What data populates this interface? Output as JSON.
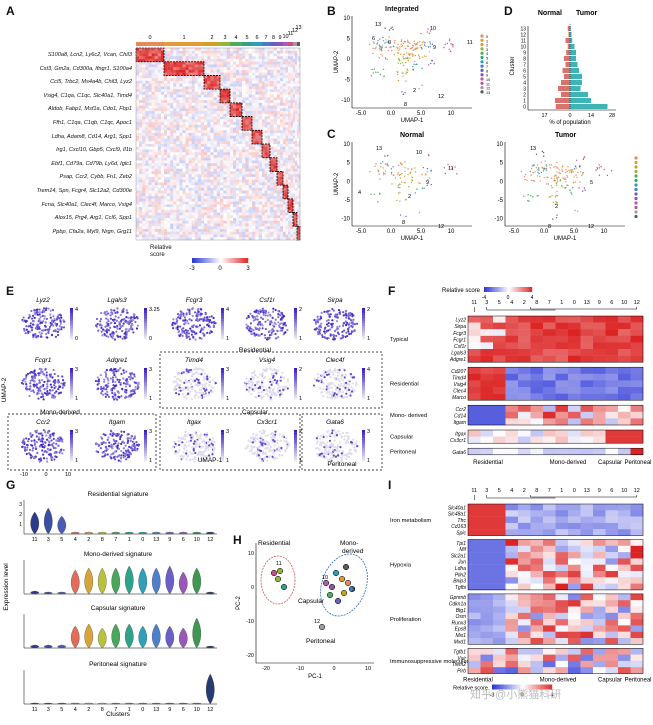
{
  "panels": {
    "A": "A",
    "B": "B",
    "C": "C",
    "D": "D",
    "E": "E",
    "F": "F",
    "G": "G",
    "H": "H",
    "I": "I"
  },
  "panelA": {
    "cluster_ticks": [
      "0",
      "1",
      "2",
      "3",
      "4",
      "5",
      "6",
      "7",
      "8",
      "9",
      "10",
      "11",
      "12",
      "13"
    ],
    "gene_rows": [
      "S100a8, Lcn2, Ly6c2, Vcan, Chil3",
      "Cst3, Gm2a, Cd300a, Ifngr1, S100a4",
      "Ccl5, Trbc2, Ms4a4b, Chil3, Lyz2",
      "Vsig4, C1qa, C1qc, Slc40a1, Timd4",
      "Aldob, Fabp1, Msf1a, Cdo1, Fbp1",
      "Ffh1, C1qa, C1qb, C1qc, Apoc1",
      "Ldha, Adam8, Cd14, Arg1, Spp1",
      "Irg1, Cxcl10, Gbp5, Cxcl9, Il1b",
      "Ebf1, Cd79a, Cd79b, Ly6d, Iglc1",
      "Psap, Ccr2, Cybb, Fn1, Zeb2",
      "Trem14, Spn, Fcgr4, Slc12a2, Cd300e",
      "Fcna, Slc40a1, Clec4f, Marco, Vsig4",
      "Alox15, Prg4, Arg1, Ccl6, Spp1",
      "Ppbp, Cfa2a, Myl9, Nrgn, Grg11"
    ],
    "legend_title": "Relative\nscore",
    "legend_ticks": [
      "-3",
      "0",
      "3"
    ],
    "cluster_colors": [
      "#e58a5b",
      "#e39a3a",
      "#c9a227",
      "#8fb83a",
      "#4dad5b",
      "#2ea28a",
      "#2e9fb5",
      "#3f7fc7",
      "#6a5fc2",
      "#8b55b3",
      "#b25ba8",
      "#c7508a",
      "#9e9e9e",
      "#5a5a5a"
    ]
  },
  "panelB": {
    "title": "Integrated",
    "xlabel": "UMAP-1",
    "ylabel": "UMAP-2",
    "xticks": [
      "-5.0",
      "0.0",
      "5.0",
      "10"
    ],
    "yticks": [
      "10",
      "5",
      "0",
      "-5",
      "-10"
    ],
    "cluster_labels": [
      "13",
      "6",
      "0",
      "10",
      "9",
      "11",
      "2",
      "8",
      "12"
    ]
  },
  "panelC": {
    "title_normal": "Normal",
    "title_tumor": "Tumor",
    "xlabel": "UMAP-1",
    "ylabel": "UMAP-2",
    "xticks": [
      "-5.0",
      "0.0",
      "5.0",
      "10"
    ],
    "yticks": [
      "10",
      "5",
      "0",
      "-5",
      "-10"
    ],
    "normal_labels": [
      "13",
      "10",
      "11",
      "4",
      "9",
      "2",
      "8",
      "12"
    ],
    "tumor_labels": [
      "13",
      "5",
      "2",
      "8",
      "12"
    ]
  },
  "chart_data": {
    "type": "bar",
    "title": "",
    "left_label": "Normal",
    "right_label": "Tumor",
    "categories": [
      "0",
      "1",
      "2",
      "3",
      "4",
      "5",
      "6",
      "7",
      "8",
      "9",
      "10",
      "11",
      "12",
      "13"
    ],
    "series": [
      {
        "name": "Normal",
        "values": [
          9.5,
          10,
          6,
          8,
          6,
          4,
          5,
          3,
          4,
          2.5,
          1.5,
          3,
          1,
          1.5
        ]
      },
      {
        "name": "Tumor",
        "values": [
          25,
          14,
          12,
          7,
          8,
          8,
          6,
          5,
          4,
          4,
          3,
          1.5,
          1,
          0.5
        ]
      }
    ],
    "xlabel": "% of population",
    "ylabel": "Cluster",
    "xticks": [
      "17",
      "0",
      "14",
      "28"
    ]
  },
  "panelE": {
    "genes": [
      "Lyz2",
      "Lgals3",
      "Fcgr3",
      "Csf1r",
      "Sirpa",
      "Fcgr1",
      "Adgre1",
      "Timd4",
      "Vsig4",
      "Clec4f",
      "Ccr2",
      "Itgam",
      "Itgax",
      "Cx3cr1",
      "Gata6"
    ],
    "scales": [
      [
        "4",
        "0"
      ],
      [
        "3.25",
        "0"
      ],
      [
        "4",
        "1"
      ],
      [
        "2",
        "1"
      ],
      [
        "2",
        "1"
      ],
      [
        "3",
        "1"
      ],
      [
        "3",
        "1"
      ],
      [
        "3",
        "1"
      ],
      [
        "2",
        "1"
      ],
      [
        "4",
        "1"
      ],
      [
        "3",
        "1"
      ],
      [
        "3",
        "1"
      ],
      [
        "3",
        "1"
      ],
      [
        "2",
        "1"
      ],
      [
        "3",
        "1"
      ]
    ],
    "group_residential": "Residential",
    "group_monoderived": "Mono-derived",
    "group_capsular": "Capsular",
    "group_peritoneal": "Peritoneal",
    "xlabel": "UMAP-1",
    "ylabel": "UMAP-2",
    "ticks": [
      "-10",
      "0",
      "10"
    ]
  },
  "panelF": {
    "legend_title": "Relative score",
    "legend_ticks": [
      "-4",
      "0",
      "4"
    ],
    "columns": [
      "11",
      "3",
      "5",
      "4",
      "2",
      "8",
      "7",
      "1",
      "0",
      "13",
      "9",
      "6",
      "10",
      "12"
    ],
    "groups": [
      {
        "name": "Typical",
        "genes": "Lyz2\nSirpa\nFcgr3\nFcgr1\nCsf1r\nLgals3\nAdgre1"
      },
      {
        "name": "Residential",
        "genes": "Cd207\nTimd4\nVsig4\nClec4\nMarco"
      },
      {
        "name": "Mono-\nderived",
        "genes": "Ccr2\nCd14\nItgam"
      },
      {
        "name": "Capsular",
        "genes": "Itgax\nCx3cr1"
      },
      {
        "name": "Peritoneal",
        "genes": "Gata6"
      }
    ],
    "bottom": [
      "Residential",
      "Mono-derived",
      "Capsular",
      "Peritoneal"
    ]
  },
  "panelG": {
    "titles": [
      "Residential signature",
      "Mono-derived signature",
      "Capsular signature",
      "Peritoneal signature"
    ],
    "xticks": [
      "11",
      "3",
      "5",
      "4",
      "2",
      "8",
      "7",
      "1",
      "0",
      "13",
      "9",
      "6",
      "10",
      "12"
    ],
    "ylabel": "Expression level",
    "xlabel": "Clusters",
    "yticks": [
      "3",
      "2",
      "1"
    ]
  },
  "panelH": {
    "xlabel": "PC-1",
    "ylabel": "PC-2",
    "xticks": [
      "-20",
      "-10",
      "0",
      "10"
    ],
    "yticks": [
      "10",
      "0",
      "-10",
      "-20"
    ],
    "groups": [
      "Residential",
      "Mono-\nderived",
      "Capsular",
      "Peritoneal"
    ],
    "labels": [
      "11",
      "10",
      "12",
      "3"
    ]
  },
  "panelI": {
    "legend_title": "Relative\nscore",
    "legend_ticks": [
      "-3",
      "0",
      "4"
    ],
    "columns": [
      "11",
      "3",
      "5",
      "4",
      "2",
      "8",
      "7",
      "1",
      "0",
      "13",
      "9",
      "6",
      "10",
      "12"
    ],
    "groups": [
      {
        "name": "Iron\nmetabolism",
        "genes": "Slc40a1\nSlc48a1\nTfrc\nCd163\nSpic"
      },
      {
        "name": "Hypoxia",
        "genes": "Tpi1\nMif\nSlc2a1\nJun\nLdha\nPlin2\nBnip3\nTgfbi"
      },
      {
        "name": "Proliferation",
        "genes": "Gpnmb\nCdkn1a\nBtg1\nOsm\nRunx3\nEps8\nMxi1\nMxd1"
      },
      {
        "name": "Immunosuppressive\nmolecules",
        "genes": "Tgfb1\nVsir\nTrem2\nPirb"
      }
    ],
    "bottom": [
      "Residential",
      "Mono-derived",
      "Capsular",
      "Peritoneal"
    ]
  }
}
